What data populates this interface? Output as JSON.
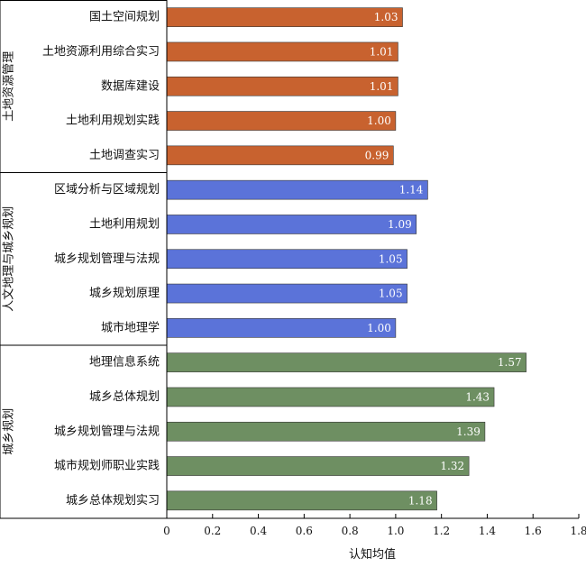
{
  "chart_data": {
    "type": "bar",
    "orientation": "horizontal",
    "xlabel": "认知均值",
    "xlim": [
      0,
      1.8
    ],
    "xticks": [
      "0",
      "0.2",
      "0.4",
      "0.6",
      "0.8",
      "1.0",
      "1.2",
      "1.4",
      "1.6",
      "1.8"
    ],
    "grid": false,
    "groups": [
      {
        "name": "土地资源管理",
        "color": "#C8622F",
        "items": [
          {
            "label": "国土空间规划",
            "value": 1.03,
            "value_label": "1.03"
          },
          {
            "label": "土地资源利用综合实习",
            "value": 1.01,
            "value_label": "1.01"
          },
          {
            "label": "数据库建设",
            "value": 1.01,
            "value_label": "1.01"
          },
          {
            "label": "土地利用规划实践",
            "value": 1.0,
            "value_label": "1.00"
          },
          {
            "label": "土地调查实习",
            "value": 0.99,
            "value_label": "0.99"
          }
        ]
      },
      {
        "name": "人文地理与城乡规划",
        "color": "#5B73D9",
        "items": [
          {
            "label": "区域分析与区域规划",
            "value": 1.14,
            "value_label": "1.14"
          },
          {
            "label": "土地利用规划",
            "value": 1.09,
            "value_label": "1.09"
          },
          {
            "label": "城乡规划管理与法规",
            "value": 1.05,
            "value_label": "1.05"
          },
          {
            "label": "城乡规划原理",
            "value": 1.05,
            "value_label": "1.05"
          },
          {
            "label": "城市地理学",
            "value": 1.0,
            "value_label": "1.00"
          }
        ]
      },
      {
        "name": "城乡规划",
        "color": "#6E8F62",
        "items": [
          {
            "label": "地理信息系统",
            "value": 1.57,
            "value_label": "1.57"
          },
          {
            "label": "城乡总体规划",
            "value": 1.43,
            "value_label": "1.43"
          },
          {
            "label": "城乡规划管理与法规",
            "value": 1.39,
            "value_label": "1.39"
          },
          {
            "label": "城市规划师职业实践",
            "value": 1.32,
            "value_label": "1.32"
          },
          {
            "label": "城乡总体规划实习",
            "value": 1.18,
            "value_label": "1.18"
          }
        ]
      }
    ]
  }
}
